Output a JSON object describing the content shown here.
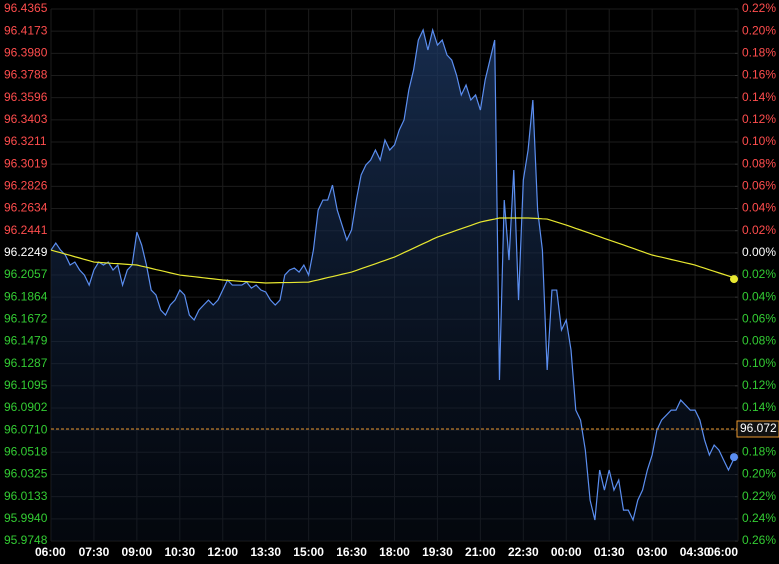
{
  "chart_data": {
    "type": "line",
    "up_color": "#ff4d4d",
    "down_color": "#33cc33",
    "neutral_color": "#ffffff",
    "grid": true,
    "categories": [
      "06:00",
      null,
      null,
      null,
      null,
      null,
      null,
      null,
      null,
      "07:30",
      null,
      null,
      null,
      null,
      null,
      null,
      null,
      null,
      "09:00",
      null,
      null,
      null,
      null,
      null,
      null,
      null,
      null,
      "10:30",
      null,
      null,
      null,
      null,
      null,
      null,
      null,
      null,
      "12:00",
      null,
      null,
      null,
      null,
      null,
      null,
      null,
      null,
      "13:30",
      null,
      null,
      null,
      null,
      null,
      null,
      null,
      null,
      "15:00",
      null,
      null,
      null,
      null,
      null,
      null,
      null,
      null,
      "16:30",
      null,
      null,
      null,
      null,
      null,
      null,
      null,
      null,
      "18:00",
      null,
      null,
      null,
      null,
      null,
      null,
      null,
      null,
      "19:30",
      null,
      null,
      null,
      null,
      null,
      null,
      null,
      null,
      "21:00",
      null,
      null,
      null,
      null,
      null,
      null,
      null,
      null,
      "22:30",
      null,
      null,
      null,
      null,
      null,
      null,
      null,
      null,
      "00:00",
      null,
      null,
      null,
      null,
      null,
      null,
      null,
      null,
      "01:30",
      null,
      null,
      null,
      null,
      null,
      null,
      null,
      null,
      "03:00",
      null,
      null,
      null,
      null,
      null,
      null,
      null,
      null,
      "04:30",
      null,
      null,
      null,
      null,
      null,
      null,
      null,
      null,
      "06:00"
    ],
    "series": [
      {
        "color": "#5b8ef0",
        "fill": true,
        "values": [
          96.2273,
          96.2334,
          96.2273,
          96.223,
          96.2143,
          96.2169,
          96.21,
          96.2056,
          96.1969,
          96.21,
          96.2169,
          96.2143,
          96.2169,
          96.21,
          96.2143,
          96.1969,
          96.21,
          96.2143,
          96.2429,
          96.2317,
          96.2143,
          96.1926,
          96.1883,
          96.1752,
          96.1709,
          96.1796,
          96.1839,
          96.1926,
          96.1883,
          96.1709,
          96.1666,
          96.1752,
          96.1796,
          96.1839,
          96.1796,
          96.1839,
          96.1926,
          96.2013,
          96.1969,
          96.1969,
          96.1969,
          96.1995,
          96.1943,
          96.1969,
          96.1926,
          96.1909,
          96.1839,
          96.1796,
          96.1839,
          96.2056,
          96.21,
          96.2117,
          96.2082,
          96.2143,
          96.2056,
          96.2273,
          96.262,
          96.2707,
          96.2707,
          96.2837,
          96.262,
          96.249,
          96.236,
          96.2447,
          96.2707,
          96.2924,
          96.3011,
          96.3054,
          96.3141,
          96.3054,
          96.3228,
          96.3141,
          96.3185,
          96.3315,
          96.3402,
          96.3662,
          96.3836,
          96.4096,
          96.4183,
          96.4009,
          96.4183,
          96.4052,
          96.4096,
          96.3966,
          96.3922,
          96.3792,
          96.3619,
          96.3705,
          96.3575,
          96.3619,
          96.3488,
          96.3749,
          96.3922,
          96.4096,
          96.1145,
          96.2707,
          96.2186,
          96.2968,
          96.1839,
          96.2881,
          96.3141,
          96.3575,
          96.262,
          96.2273,
          96.1232,
          96.1926,
          96.1926,
          96.1579,
          96.1666,
          96.1405,
          96.0884,
          96.0798,
          96.0537,
          96.0103,
          95.993,
          96.0364,
          96.019,
          96.0364,
          96.019,
          96.0277,
          96.0016,
          96.0016,
          95.993,
          96.0103,
          96.019,
          96.0364,
          96.0494,
          96.0711,
          96.0798,
          96.0841,
          96.0884,
          96.0884,
          96.0971,
          96.0928,
          96.0884,
          96.0884,
          96.0798,
          96.0624,
          96.0494,
          96.0581,
          96.0537,
          96.045,
          96.0364,
          96.045,
          96.0476
        ]
      },
      {
        "color": "#e8e830",
        "fill": false,
        "values": [
          96.2273,
          96.2261,
          96.225,
          96.2238,
          96.2227,
          96.2215,
          96.2204,
          96.2192,
          96.2181,
          96.2169,
          96.2166,
          96.2163,
          96.216,
          96.2157,
          96.2155,
          96.2152,
          96.2149,
          96.2146,
          96.2143,
          96.2133,
          96.2124,
          96.2114,
          96.2104,
          96.2095,
          96.2085,
          96.2075,
          96.2066,
          96.2056,
          96.2051,
          96.2046,
          96.2042,
          96.2037,
          96.2032,
          96.2027,
          96.2023,
          96.2018,
          96.2013,
          96.201,
          96.2007,
          96.2004,
          96.2001,
          96.1999,
          96.1996,
          96.1993,
          96.199,
          96.1987,
          96.1988,
          96.1989,
          96.199,
          96.1991,
          96.1991,
          96.1992,
          96.1993,
          96.1994,
          96.1995,
          96.2005,
          96.2014,
          96.2024,
          96.2034,
          96.2043,
          96.2053,
          96.2063,
          96.2072,
          96.2082,
          96.2096,
          96.2111,
          96.2125,
          96.214,
          96.2154,
          96.2169,
          96.2183,
          96.2198,
          96.2212,
          96.2231,
          96.2251,
          96.227,
          96.2289,
          96.2309,
          96.2328,
          96.2347,
          96.2367,
          96.2386,
          96.24,
          96.2415,
          96.2429,
          96.2444,
          96.2458,
          96.2473,
          96.2487,
          96.2502,
          96.2516,
          96.2525,
          96.2534,
          96.2542,
          96.2551,
          96.2551,
          96.2551,
          96.2551,
          96.2551,
          96.2551,
          96.2551,
          96.2549,
          96.2547,
          96.2544,
          96.2542,
          96.2529,
          96.2516,
          96.2503,
          96.249,
          96.2476,
          96.2461,
          96.2447,
          96.2432,
          96.2418,
          96.2403,
          96.2389,
          96.2374,
          96.236,
          96.2346,
          96.2331,
          96.2317,
          96.2302,
          96.2288,
          96.2273,
          96.2259,
          96.2244,
          96.223,
          96.222,
          96.2211,
          96.2201,
          96.2191,
          96.2182,
          96.2172,
          96.2162,
          96.2153,
          96.2143,
          96.2129,
          96.2116,
          96.2102,
          96.2089,
          96.2075,
          96.2062,
          96.2048,
          96.2035,
          96.2021
        ]
      }
    ],
    "base_value": 96.2249,
    "reference_line": {
      "value": 96.072,
      "label": "96.072",
      "color": "#e8962e"
    },
    "ylim": [
      95.9748,
      96.4365
    ],
    "yticks": [
      96.4365,
      96.4173,
      {
        "value": 96.398,
        "label": "96.3980"
      },
      96.3788,
      96.3596,
      96.3403,
      96.3211,
      96.3019,
      96.2826,
      96.2634,
      96.2441,
      96.2249,
      96.2057,
      96.1864,
      96.1672,
      96.1479,
      96.1287,
      96.1095,
      96.0902,
      {
        "value": 96.071,
        "label": "96.0710"
      },
      96.0518,
      96.0325,
      96.0133,
      {
        "value": 95.994,
        "label": "95.9940"
      },
      95.9748
    ],
    "y2lim": [
      -0.26,
      0.22
    ],
    "y2ticks": [
      {
        "value": 0.22,
        "label": "0.22%"
      },
      {
        "value": 0.2,
        "label": "0.20%"
      },
      {
        "value": 0.18,
        "label": "0.18%"
      },
      {
        "value": 0.16,
        "label": "0.16%"
      },
      {
        "value": 0.14,
        "label": "0.14%"
      },
      {
        "value": 0.12,
        "label": "0.12%"
      },
      {
        "value": 0.1,
        "label": "0.10%"
      },
      {
        "value": 0.08,
        "label": "0.08%"
      },
      {
        "value": 0.06,
        "label": "0.06%"
      },
      {
        "value": 0.04,
        "label": "0.04%"
      },
      {
        "value": 0.02,
        "label": "0.02%"
      },
      {
        "value": 0,
        "label": "0.00%"
      },
      {
        "value": -0.02,
        "label": "0.02%"
      },
      {
        "value": -0.04,
        "label": "0.04%"
      },
      {
        "value": -0.06,
        "label": "0.06%"
      },
      {
        "value": -0.08,
        "label": "0.08%"
      },
      {
        "value": -0.1,
        "label": "0.10%"
      },
      {
        "value": -0.12,
        "label": "0.12%"
      },
      {
        "value": -0.14,
        "label": "0.14%"
      },
      {
        "value": -0.16,
        "label": "0.16%"
      },
      {
        "value": -0.18,
        "label": "0.18%"
      },
      {
        "value": -0.2,
        "label": "0.20%"
      },
      {
        "value": -0.22,
        "label": "0.22%"
      },
      {
        "value": -0.24,
        "label": "0.24%"
      },
      {
        "value": -0.26,
        "label": "0.26%"
      }
    ]
  }
}
